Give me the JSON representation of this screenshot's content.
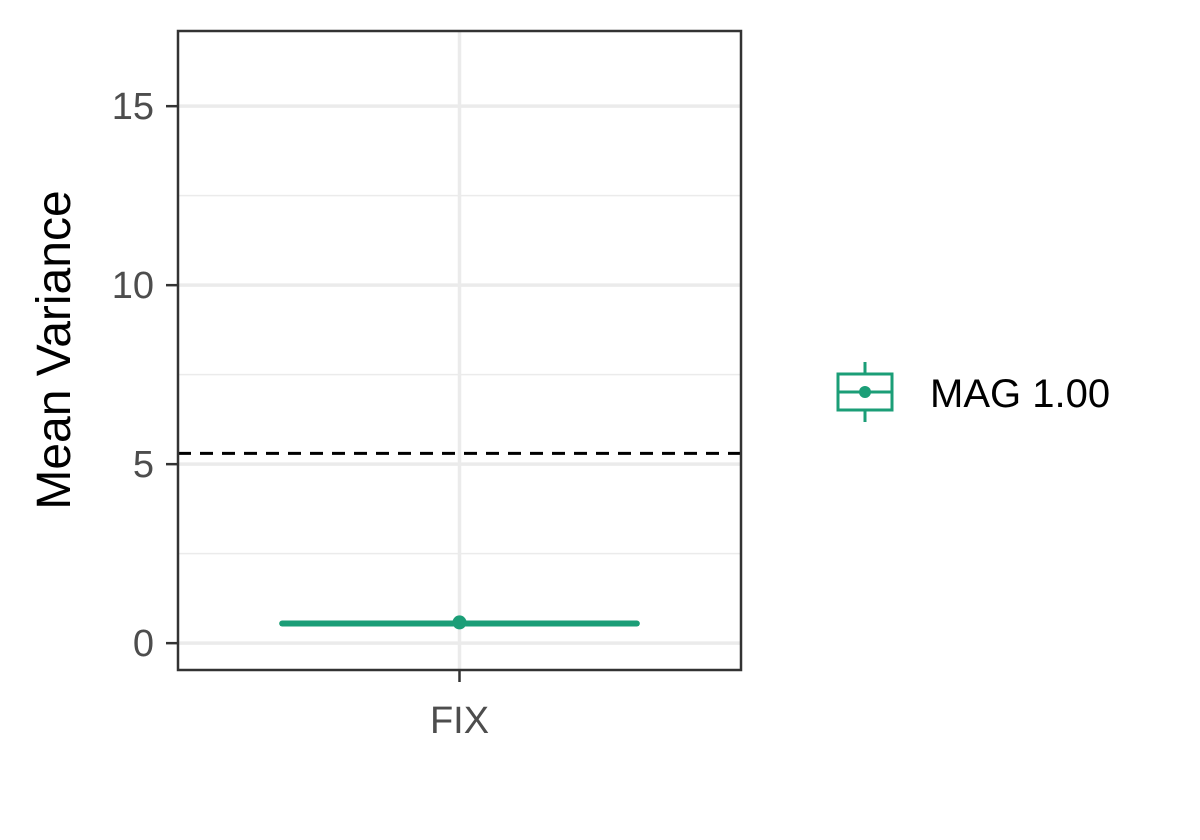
{
  "chart_data": {
    "type": "boxplot",
    "categories": [
      "FIX"
    ],
    "ylabel": "Mean Variance",
    "xlabel": "",
    "ylim": [
      -0.75,
      17.1
    ],
    "y_ticks": [
      0,
      5,
      10,
      15
    ],
    "y_tick_labels": [
      "0",
      "5",
      "10",
      "15"
    ],
    "grid": true,
    "reference_line": {
      "y": 5.3,
      "style": "dashed",
      "color": "#000000"
    },
    "series": [
      {
        "name": "MAG 1.00",
        "color": "#1b9e77",
        "boxes": [
          {
            "category": "FIX",
            "min": 0.55,
            "q1": 0.55,
            "median": 0.55,
            "q3": 0.55,
            "max": 0.55,
            "mean": 0.58
          }
        ]
      }
    ],
    "legend": {
      "position": "right",
      "entries": [
        "MAG 1.00"
      ]
    }
  }
}
